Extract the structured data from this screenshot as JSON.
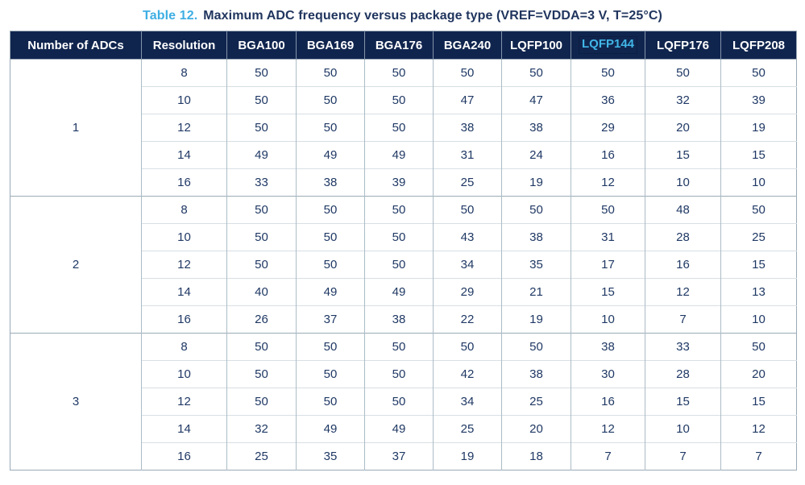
{
  "title": {
    "label": "Table 12.",
    "text": "Maximum ADC frequency versus package type (VREF=VDDA=3 V, T=25°C)"
  },
  "colors": {
    "header_background": "#10254E",
    "header_text": "#FFFFFF",
    "title_accent_blue": "#3FAEE3",
    "link_blue": "#41B6E6",
    "body_text_navy": "#1F3864",
    "grid_vertical": "#ABBCC6",
    "grid_horizontal": "#D7DFE4",
    "table_outline": "#9AAAB6"
  },
  "table": {
    "columns": [
      "Number of ADCs",
      "Resolution",
      "BGA100",
      "BGA169",
      "BGA176",
      "BGA240",
      "LQFP100",
      "LQFP144",
      "LQFP176",
      "LQFP208"
    ],
    "link_column": "LQFP144",
    "groups": [
      {
        "adcs": "1",
        "rows": [
          {
            "resolution": "8",
            "values": [
              50,
              50,
              50,
              50,
              50,
              50,
              50,
              50
            ]
          },
          {
            "resolution": "10",
            "values": [
              50,
              50,
              50,
              47,
              47,
              36,
              32,
              39
            ]
          },
          {
            "resolution": "12",
            "values": [
              50,
              50,
              50,
              38,
              38,
              29,
              20,
              19
            ]
          },
          {
            "resolution": "14",
            "values": [
              49,
              49,
              49,
              31,
              24,
              16,
              15,
              15
            ]
          },
          {
            "resolution": "16",
            "values": [
              33,
              38,
              39,
              25,
              19,
              12,
              10,
              10
            ]
          }
        ]
      },
      {
        "adcs": "2",
        "rows": [
          {
            "resolution": "8",
            "values": [
              50,
              50,
              50,
              50,
              50,
              50,
              48,
              50
            ]
          },
          {
            "resolution": "10",
            "values": [
              50,
              50,
              50,
              43,
              38,
              31,
              28,
              25
            ]
          },
          {
            "resolution": "12",
            "values": [
              50,
              50,
              50,
              34,
              35,
              17,
              16,
              15
            ]
          },
          {
            "resolution": "14",
            "values": [
              40,
              49,
              49,
              29,
              21,
              15,
              12,
              13
            ]
          },
          {
            "resolution": "16",
            "values": [
              26,
              37,
              38,
              22,
              19,
              10,
              7,
              10
            ]
          }
        ]
      },
      {
        "adcs": "3",
        "rows": [
          {
            "resolution": "8",
            "values": [
              50,
              50,
              50,
              50,
              50,
              38,
              33,
              50
            ]
          },
          {
            "resolution": "10",
            "values": [
              50,
              50,
              50,
              42,
              38,
              30,
              28,
              20
            ]
          },
          {
            "resolution": "12",
            "values": [
              50,
              50,
              50,
              34,
              25,
              16,
              15,
              15
            ]
          },
          {
            "resolution": "14",
            "values": [
              32,
              49,
              49,
              25,
              20,
              12,
              10,
              12
            ]
          },
          {
            "resolution": "16",
            "values": [
              25,
              35,
              37,
              19,
              18,
              7,
              7,
              7
            ]
          }
        ]
      }
    ]
  }
}
